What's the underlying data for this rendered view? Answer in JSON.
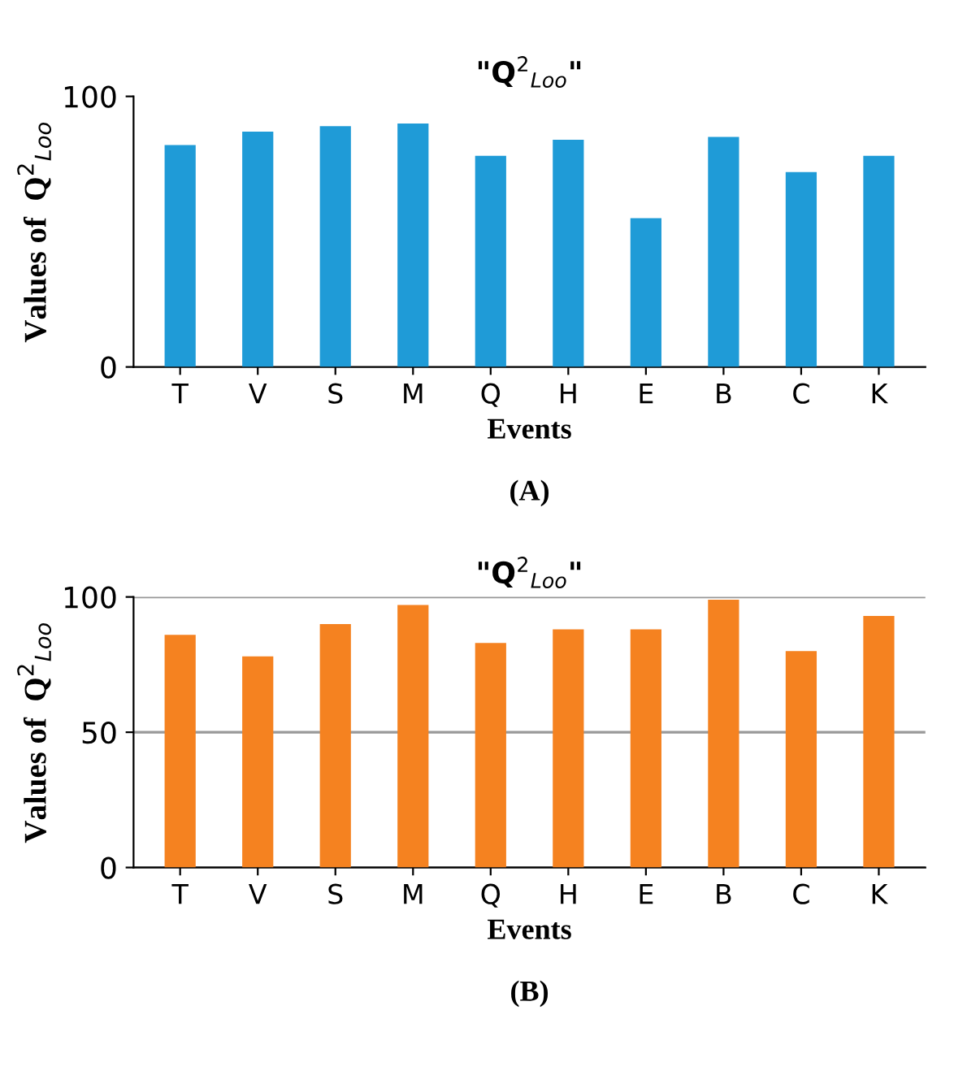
{
  "chart_data": [
    {
      "type": "bar",
      "title": "\"Q$^{2}$$_{Loo}$\"",
      "xlabel": "Events",
      "ylabel": "Values of  Q$^{2}$$_{Loo}$",
      "categories": [
        "T",
        "V",
        "S",
        "M",
        "Q",
        "H",
        "E",
        "B",
        "C",
        "K"
      ],
      "series": [
        {
          "color": "#1f9bd7",
          "values": [
            82,
            87,
            89,
            90,
            78,
            84,
            55,
            85,
            72,
            78
          ]
        }
      ],
      "ylim": [
        0,
        100
      ],
      "yticks": [
        0,
        100
      ],
      "grid": false,
      "annotations": [
        "(A)"
      ]
    },
    {
      "type": "bar",
      "title": "\"Q$^{2}$$_{Loo}$\"",
      "xlabel": "Events",
      "ylabel": "Values of  Q$^{2}$$_{Loo}$",
      "categories": [
        "T",
        "V",
        "S",
        "M",
        "Q",
        "H",
        "E",
        "B",
        "C",
        "K"
      ],
      "series": [
        {
          "color": "#f58220",
          "values": [
            86,
            78,
            90,
            97,
            83,
            88,
            88,
            99,
            80,
            93
          ]
        }
      ],
      "ylim": [
        0,
        100
      ],
      "yticks": [
        0,
        50,
        100
      ],
      "grid": "y",
      "annotations": [
        "(B)"
      ]
    }
  ]
}
